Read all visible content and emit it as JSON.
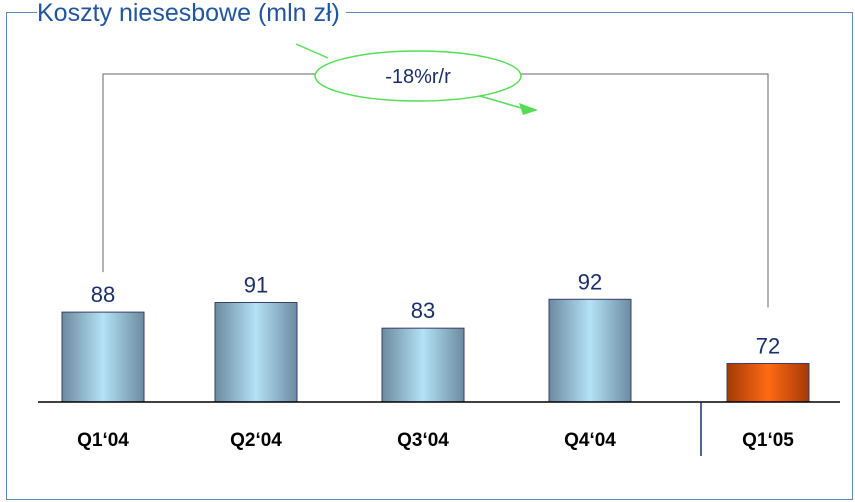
{
  "chart_data": {
    "type": "bar",
    "title": "Koszty niesesbowe (mln zł)",
    "categories": [
      "Q1‘04",
      "Q2‘04",
      "Q3‘04",
      "Q4‘04",
      "Q1‘05"
    ],
    "values": [
      88,
      91,
      83,
      92,
      72
    ],
    "value_labels": [
      "88",
      "91",
      "83",
      "92",
      "72"
    ],
    "ylim": [
      0,
      100
    ],
    "grid": false,
    "legend": "none",
    "annotation": {
      "text": "-18%r/r",
      "from_category": "Q1‘04",
      "to_category": "Q1‘05"
    },
    "colors": {
      "bar_default": "#9fd4ee",
      "bar_default_dark": "#6c8aa0",
      "bar_highlight": "#f06010",
      "bar_highlight_dark": "#a33a06",
      "highlight_index": 4,
      "axis": "#000000",
      "bracket": "#666666",
      "ellipse": "#55dd55",
      "title": "#2255a0",
      "labels": "#1a2f6a"
    }
  }
}
